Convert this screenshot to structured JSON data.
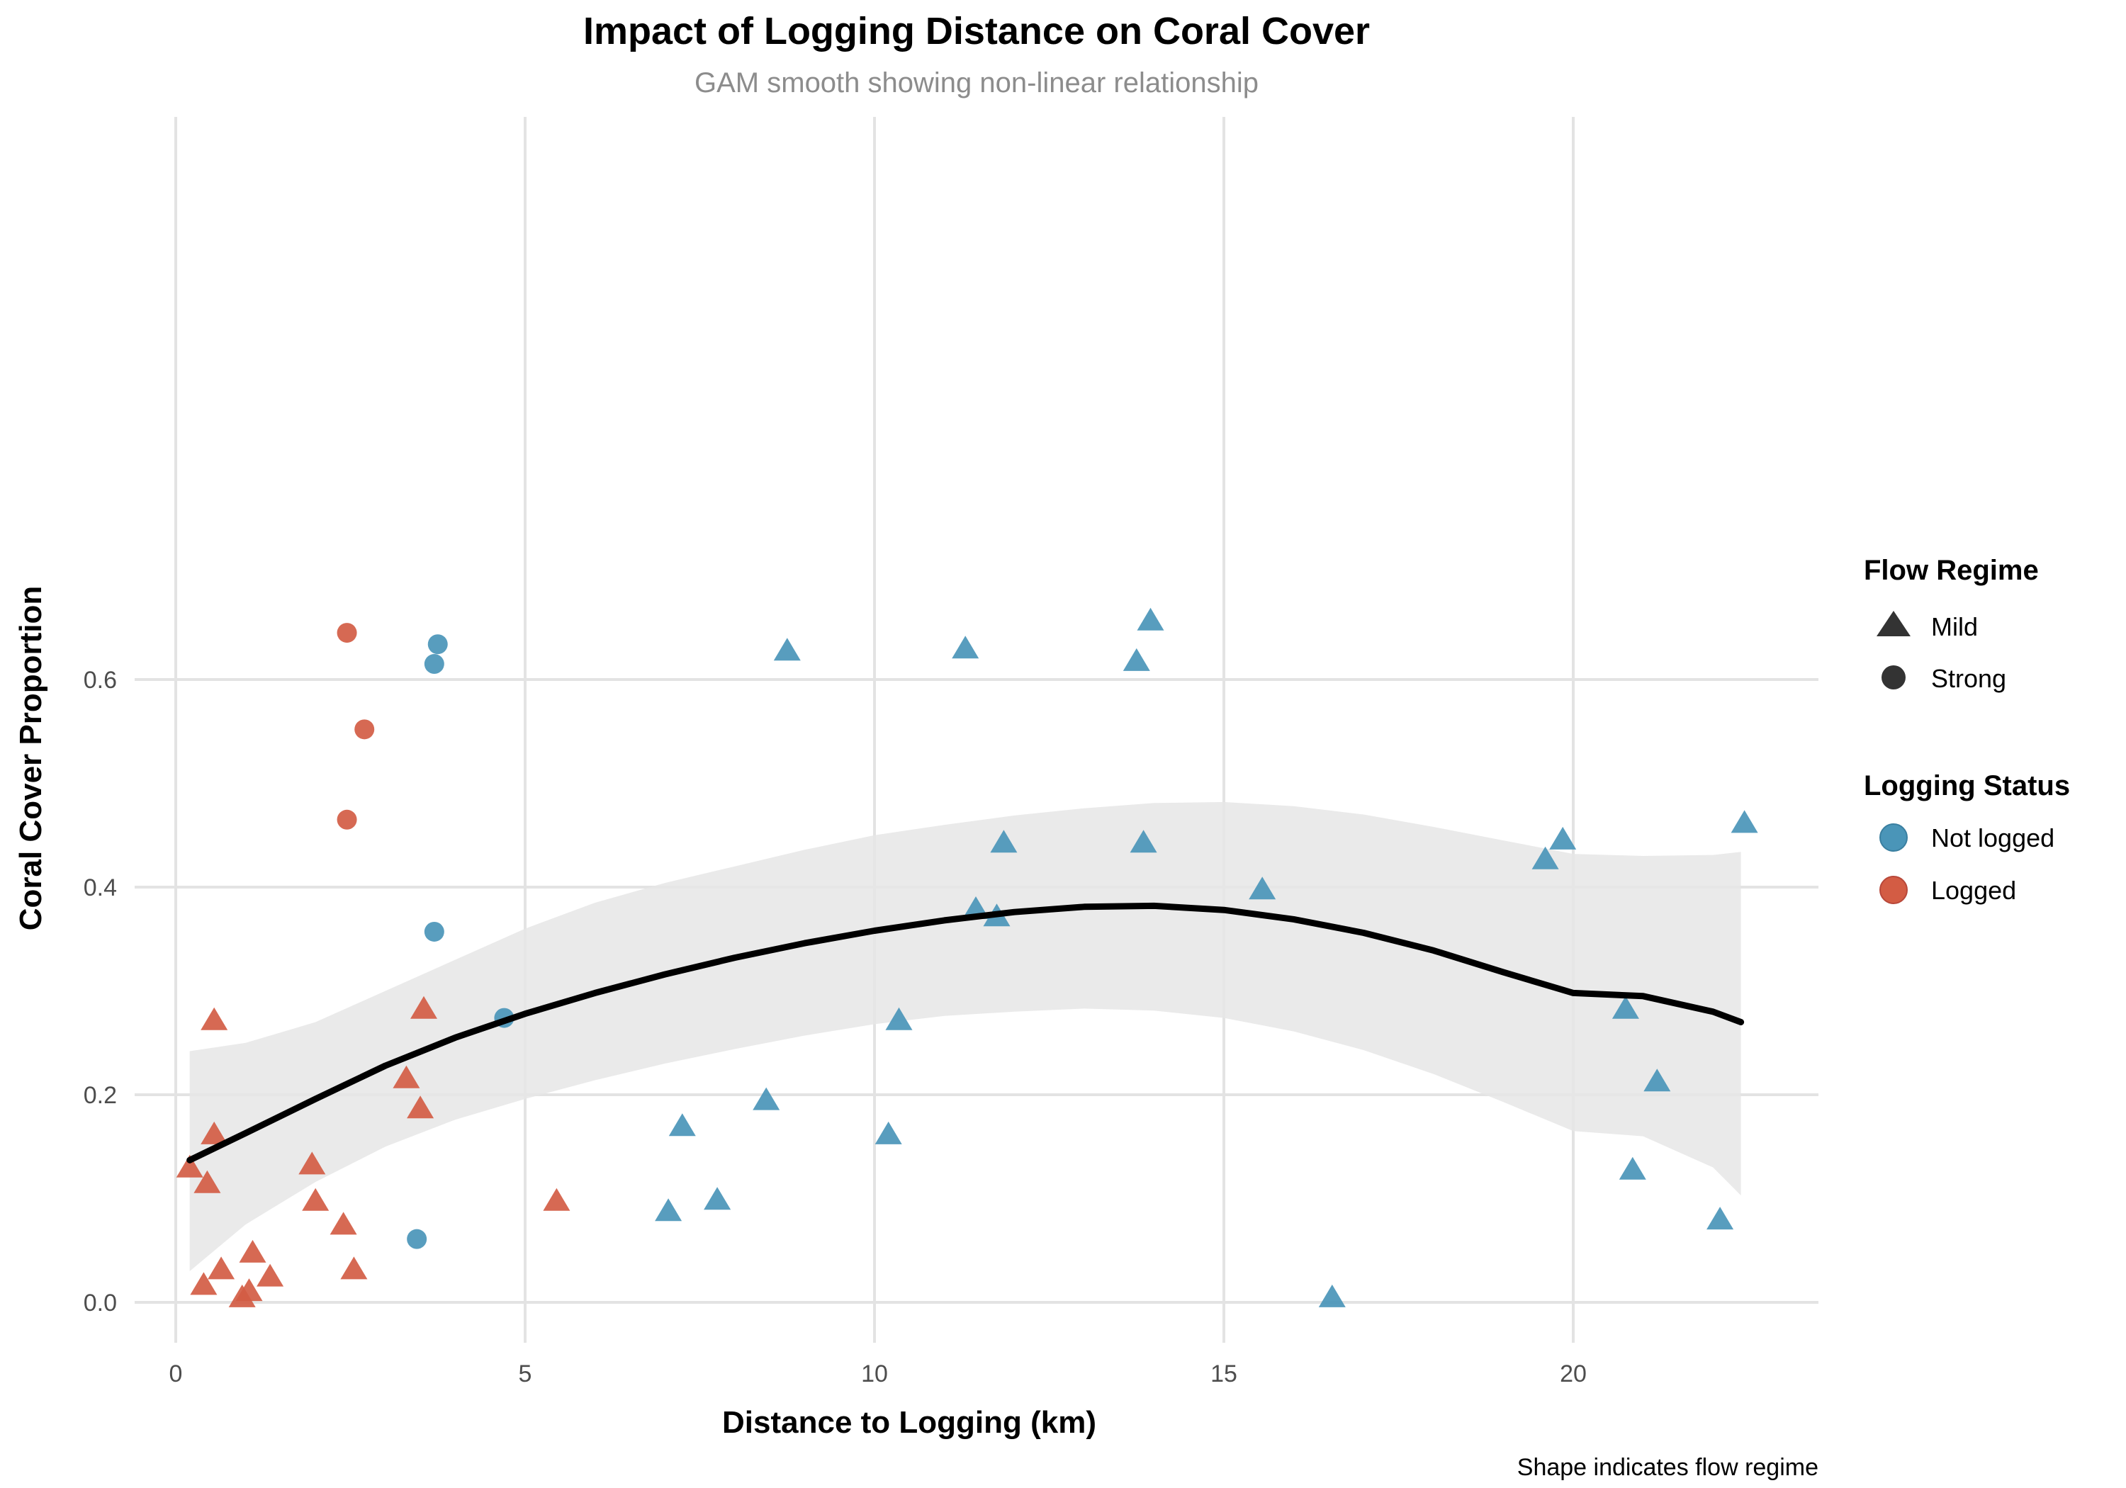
{
  "chart_data": {
    "type": "scatter",
    "title": "Impact of Logging Distance on Coral Cover",
    "subtitle": "GAM smooth showing non-linear relationship",
    "xlabel": "Distance to Logging (km)",
    "ylabel": "Coral Cover Proportion",
    "caption": "Shape indicates flow regime",
    "xlim": [
      -0.5,
      23.5
    ],
    "ylim": [
      -0.02,
      0.68
    ],
    "x_ticks": [
      0,
      5,
      10,
      15,
      20
    ],
    "y_ticks": [
      0.0,
      0.2,
      0.4,
      0.6
    ],
    "grid": true,
    "colors": {
      "Not logged": "#4a95b8",
      "Logged": "#d35c44",
      "smooth": "#000000",
      "ribbon": "#e6e6e6"
    },
    "legends": [
      {
        "title": "Flow Regime",
        "items": [
          {
            "label": "Mild",
            "shape": "triangle"
          },
          {
            "label": "Strong",
            "shape": "circle"
          }
        ]
      },
      {
        "title": "Logging Status",
        "items": [
          {
            "label": "Not logged",
            "color": "#4a95b8"
          },
          {
            "label": "Logged",
            "color": "#d35c44"
          }
        ]
      }
    ],
    "legend_position": "right",
    "points": [
      {
        "x": 2.45,
        "y": 0.645,
        "logging": "Logged",
        "flow": "Strong"
      },
      {
        "x": 2.7,
        "y": 0.552,
        "logging": "Logged",
        "flow": "Strong"
      },
      {
        "x": 2.45,
        "y": 0.465,
        "logging": "Logged",
        "flow": "Strong"
      },
      {
        "x": 3.75,
        "y": 0.634,
        "logging": "Not logged",
        "flow": "Strong"
      },
      {
        "x": 3.7,
        "y": 0.615,
        "logging": "Not logged",
        "flow": "Strong"
      },
      {
        "x": 3.7,
        "y": 0.357,
        "logging": "Not logged",
        "flow": "Strong"
      },
      {
        "x": 4.7,
        "y": 0.274,
        "logging": "Not logged",
        "flow": "Strong"
      },
      {
        "x": 3.45,
        "y": 0.061,
        "logging": "Not logged",
        "flow": "Strong"
      },
      {
        "x": 8.75,
        "y": 0.627,
        "logging": "Not logged",
        "flow": "Mild"
      },
      {
        "x": 11.3,
        "y": 0.629,
        "logging": "Not logged",
        "flow": "Mild"
      },
      {
        "x": 13.95,
        "y": 0.656,
        "logging": "Not logged",
        "flow": "Mild"
      },
      {
        "x": 13.75,
        "y": 0.617,
        "logging": "Not logged",
        "flow": "Mild"
      },
      {
        "x": 11.85,
        "y": 0.442,
        "logging": "Not logged",
        "flow": "Mild"
      },
      {
        "x": 13.85,
        "y": 0.442,
        "logging": "Not logged",
        "flow": "Mild"
      },
      {
        "x": 15.55,
        "y": 0.397,
        "logging": "Not logged",
        "flow": "Mild"
      },
      {
        "x": 11.45,
        "y": 0.378,
        "logging": "Not logged",
        "flow": "Mild"
      },
      {
        "x": 11.75,
        "y": 0.371,
        "logging": "Not logged",
        "flow": "Mild"
      },
      {
        "x": 10.35,
        "y": 0.271,
        "logging": "Not logged",
        "flow": "Mild"
      },
      {
        "x": 8.45,
        "y": 0.194,
        "logging": "Not logged",
        "flow": "Mild"
      },
      {
        "x": 7.25,
        "y": 0.169,
        "logging": "Not logged",
        "flow": "Mild"
      },
      {
        "x": 10.2,
        "y": 0.161,
        "logging": "Not logged",
        "flow": "Mild"
      },
      {
        "x": 7.75,
        "y": 0.098,
        "logging": "Not logged",
        "flow": "Mild"
      },
      {
        "x": 7.05,
        "y": 0.087,
        "logging": "Not logged",
        "flow": "Mild"
      },
      {
        "x": 16.55,
        "y": 0.004,
        "logging": "Not logged",
        "flow": "Mild"
      },
      {
        "x": 19.85,
        "y": 0.445,
        "logging": "Not logged",
        "flow": "Mild"
      },
      {
        "x": 19.6,
        "y": 0.426,
        "logging": "Not logged",
        "flow": "Mild"
      },
      {
        "x": 22.45,
        "y": 0.461,
        "logging": "Not logged",
        "flow": "Mild"
      },
      {
        "x": 20.75,
        "y": 0.282,
        "logging": "Not logged",
        "flow": "Mild"
      },
      {
        "x": 21.2,
        "y": 0.212,
        "logging": "Not logged",
        "flow": "Mild"
      },
      {
        "x": 20.85,
        "y": 0.127,
        "logging": "Not logged",
        "flow": "Mild"
      },
      {
        "x": 22.1,
        "y": 0.079,
        "logging": "Not logged",
        "flow": "Mild"
      },
      {
        "x": 0.55,
        "y": 0.271,
        "logging": "Logged",
        "flow": "Mild"
      },
      {
        "x": 3.55,
        "y": 0.282,
        "logging": "Logged",
        "flow": "Mild"
      },
      {
        "x": 3.3,
        "y": 0.215,
        "logging": "Logged",
        "flow": "Mild"
      },
      {
        "x": 3.5,
        "y": 0.186,
        "logging": "Logged",
        "flow": "Mild"
      },
      {
        "x": 0.55,
        "y": 0.161,
        "logging": "Logged",
        "flow": "Mild"
      },
      {
        "x": 1.95,
        "y": 0.132,
        "logging": "Logged",
        "flow": "Mild"
      },
      {
        "x": 0.2,
        "y": 0.129,
        "logging": "Logged",
        "flow": "Mild"
      },
      {
        "x": 0.45,
        "y": 0.114,
        "logging": "Logged",
        "flow": "Mild"
      },
      {
        "x": 2.0,
        "y": 0.097,
        "logging": "Logged",
        "flow": "Mild"
      },
      {
        "x": 5.45,
        "y": 0.097,
        "logging": "Logged",
        "flow": "Mild"
      },
      {
        "x": 2.4,
        "y": 0.074,
        "logging": "Logged",
        "flow": "Mild"
      },
      {
        "x": 1.1,
        "y": 0.047,
        "logging": "Logged",
        "flow": "Mild"
      },
      {
        "x": 0.65,
        "y": 0.031,
        "logging": "Logged",
        "flow": "Mild"
      },
      {
        "x": 2.55,
        "y": 0.031,
        "logging": "Logged",
        "flow": "Mild"
      },
      {
        "x": 1.35,
        "y": 0.024,
        "logging": "Logged",
        "flow": "Mild"
      },
      {
        "x": 0.4,
        "y": 0.016,
        "logging": "Logged",
        "flow": "Mild"
      },
      {
        "x": 1.05,
        "y": 0.01,
        "logging": "Logged",
        "flow": "Mild"
      },
      {
        "x": 0.95,
        "y": 0.004,
        "logging": "Logged",
        "flow": "Mild"
      }
    ],
    "smooth": {
      "x": [
        0.2,
        1,
        2,
        3,
        4,
        5,
        6,
        7,
        8,
        9,
        10,
        11,
        12,
        13,
        14,
        15,
        16,
        17,
        18,
        19,
        20,
        21,
        22,
        22.4
      ],
      "y": [
        0.137,
        0.163,
        0.196,
        0.228,
        0.255,
        0.278,
        0.298,
        0.316,
        0.332,
        0.346,
        0.358,
        0.368,
        0.376,
        0.381,
        0.382,
        0.378,
        0.369,
        0.356,
        0.339,
        0.318,
        0.298,
        0.295,
        0.28,
        0.27
      ],
      "upper": [
        0.242,
        0.25,
        0.27,
        0.3,
        0.33,
        0.36,
        0.385,
        0.404,
        0.42,
        0.436,
        0.45,
        0.46,
        0.469,
        0.476,
        0.481,
        0.482,
        0.478,
        0.47,
        0.458,
        0.445,
        0.432,
        0.43,
        0.431,
        0.434
      ],
      "lower": [
        0.03,
        0.075,
        0.116,
        0.15,
        0.176,
        0.196,
        0.214,
        0.23,
        0.244,
        0.257,
        0.268,
        0.276,
        0.28,
        0.283,
        0.281,
        0.274,
        0.261,
        0.243,
        0.22,
        0.193,
        0.165,
        0.16,
        0.13,
        0.103
      ]
    }
  }
}
